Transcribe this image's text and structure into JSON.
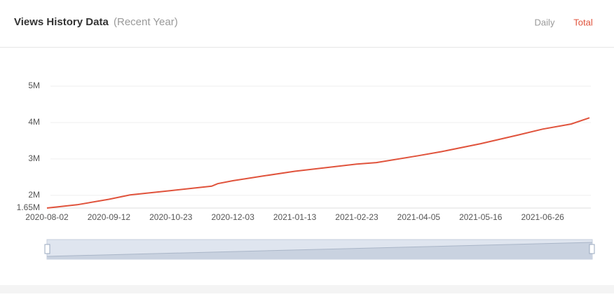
{
  "header": {
    "title": "Views History Data",
    "subtitle": "(Recent Year)",
    "tabs": [
      "Daily",
      "Total"
    ]
  },
  "chart_data": {
    "type": "line",
    "x": [
      "2020-08-02",
      "2020-08-22",
      "2020-09-12",
      "2020-09-26",
      "2020-10-23",
      "2020-11-19",
      "2020-11-23",
      "2020-12-03",
      "2020-12-23",
      "2021-01-13",
      "2021-02-23",
      "2021-03-08",
      "2021-04-05",
      "2021-04-20",
      "2021-05-16",
      "2021-06-10",
      "2021-06-26",
      "2021-07-15",
      "2021-07-27"
    ],
    "series": [
      {
        "color": "#e0533c",
        "values": [
          1650000,
          1740000,
          1890000,
          2010000,
          2130000,
          2250000,
          2320000,
          2400000,
          2530000,
          2660000,
          2860000,
          2900000,
          3090000,
          3200000,
          3420000,
          3660000,
          3820000,
          3960000,
          4130000
        ]
      }
    ],
    "xlim": [
      "2020-08-02",
      "2021-07-27"
    ],
    "xticks": [
      "2020-08-02",
      "2020-09-12",
      "2020-10-23",
      "2020-12-03",
      "2021-01-13",
      "2021-02-23",
      "2021-04-05",
      "2021-05-16",
      "2021-06-26"
    ],
    "ylim": [
      1650000,
      5000000
    ],
    "yticks": [
      {
        "value": 1650000,
        "label": "1.65M"
      },
      {
        "value": 2000000,
        "label": "2M"
      },
      {
        "value": 3000000,
        "label": "3M"
      },
      {
        "value": 4000000,
        "label": "4M"
      },
      {
        "value": 5000000,
        "label": "5M"
      }
    ],
    "grid": true
  }
}
